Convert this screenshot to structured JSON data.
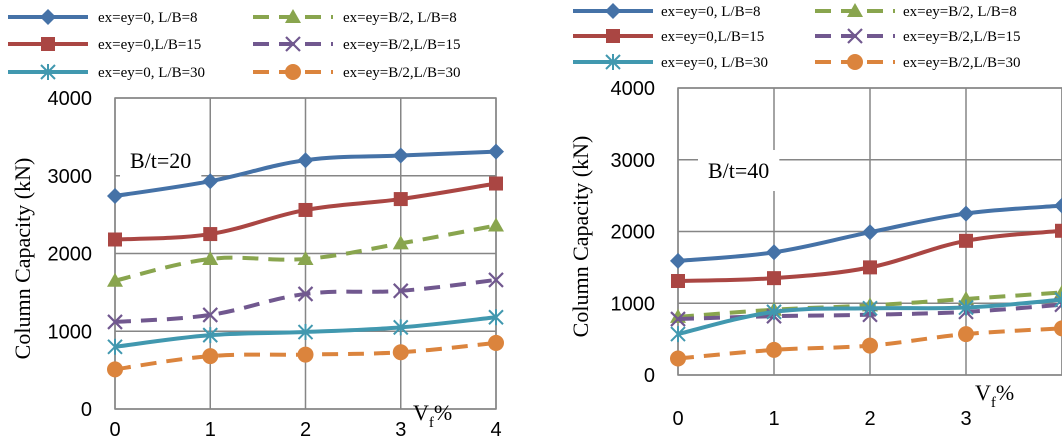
{
  "chart_data": [
    {
      "type": "line",
      "annotation": "B/t=20",
      "ylabel": "Column Capacity (kN)",
      "xlabel_main": "V",
      "xlabel_sub": "f",
      "xlabel_suffix": "%",
      "x": [
        0,
        1,
        2,
        3,
        4
      ],
      "xticks": [
        "0",
        "1",
        "2",
        "3",
        "4"
      ],
      "yticks": [
        "0",
        "1000",
        "2000",
        "3000",
        "4000"
      ],
      "xlim": [
        0,
        4
      ],
      "ylim": [
        0,
        4000
      ],
      "grid": true,
      "legend_position": "top",
      "series": [
        {
          "name": "ex=ey=0, L/B=8",
          "color": "#4572a7",
          "dash": "solid",
          "marker": "diamond",
          "values": [
            2740,
            2930,
            3200,
            3260,
            3310
          ]
        },
        {
          "name": "ex=ey=0,L/B=15",
          "color": "#aa4643",
          "dash": "solid",
          "marker": "square",
          "values": [
            2180,
            2250,
            2560,
            2700,
            2900
          ]
        },
        {
          "name": "ex=ey=0, L/B=30",
          "color": "#4198af",
          "dash": "solid",
          "marker": "asterisk",
          "values": [
            800,
            950,
            990,
            1050,
            1180
          ]
        },
        {
          "name": "ex=ey=B/2, L/B=8",
          "color": "#89a54e",
          "dash": "dashed",
          "marker": "triangle",
          "values": [
            1650,
            1930,
            1930,
            2130,
            2360
          ]
        },
        {
          "name": "ex=ey=B/2,L/B=15",
          "color": "#71588f",
          "dash": "dashed",
          "marker": "x",
          "values": [
            1120,
            1210,
            1480,
            1520,
            1660
          ]
        },
        {
          "name": "ex=ey=B/2,L/B=30",
          "color": "#db843d",
          "dash": "dashed",
          "marker": "circle",
          "values": [
            510,
            680,
            700,
            730,
            850
          ]
        }
      ]
    },
    {
      "type": "line",
      "annotation": "B/t=40",
      "ylabel": "Column Capacity (kN)",
      "xlabel_main": "V",
      "xlabel_sub": "f",
      "xlabel_suffix": "%",
      "x": [
        0,
        1,
        2,
        3,
        4
      ],
      "xticks": [
        "0",
        "1",
        "2",
        "3"
      ],
      "yticks": [
        "0",
        "1000",
        "2000",
        "3000",
        "4000"
      ],
      "xlim": [
        0,
        4
      ],
      "ylim": [
        0,
        4000
      ],
      "grid": true,
      "legend_position": "top",
      "series": [
        {
          "name": "ex=ey=0, L/B=8",
          "color": "#4572a7",
          "dash": "solid",
          "marker": "diamond",
          "values": [
            1590,
            1710,
            1990,
            2250,
            2360
          ]
        },
        {
          "name": "ex=ey=0,L/B=15",
          "color": "#aa4643",
          "dash": "solid",
          "marker": "square",
          "values": [
            1310,
            1350,
            1500,
            1870,
            2010
          ]
        },
        {
          "name": "ex=ey=0, L/B=30",
          "color": "#4198af",
          "dash": "solid",
          "marker": "asterisk",
          "values": [
            570,
            880,
            930,
            940,
            1050
          ]
        },
        {
          "name": "ex=ey=B/2, L/B=8",
          "color": "#89a54e",
          "dash": "dashed",
          "marker": "triangle",
          "values": [
            810,
            910,
            970,
            1060,
            1150
          ]
        },
        {
          "name": "ex=ey=B/2,L/B=15",
          "color": "#71588f",
          "dash": "dashed",
          "marker": "x",
          "values": [
            780,
            820,
            840,
            880,
            980
          ]
        },
        {
          "name": "ex=ey=B/2,L/B=30",
          "color": "#db843d",
          "dash": "dashed",
          "marker": "circle",
          "values": [
            230,
            350,
            410,
            570,
            650
          ]
        }
      ]
    }
  ]
}
